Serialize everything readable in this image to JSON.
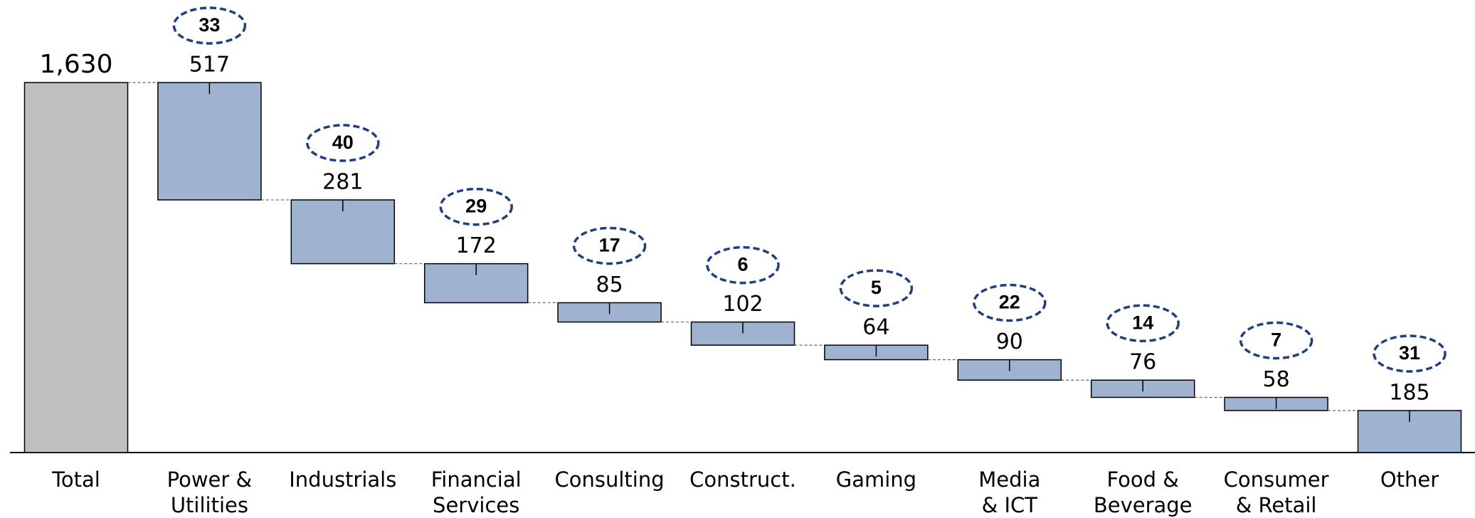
{
  "chart_data": {
    "type": "waterfall",
    "categories": [
      "Total",
      "Power &\nUtilities",
      "Industrials",
      "Financial\nServices",
      "Consulting",
      "Construct.",
      "Gaming",
      "Media\n& ICT",
      "Food &\nBeverage",
      "Consumer\n& Retail",
      "Other"
    ],
    "values": [
      1630,
      517,
      281,
      172,
      85,
      102,
      64,
      90,
      76,
      58,
      185
    ],
    "value_labels": [
      "1,630",
      "517",
      "281",
      "172",
      "85",
      "102",
      "64",
      "90",
      "76",
      "58",
      "185"
    ],
    "badges": [
      null,
      33,
      40,
      29,
      17,
      6,
      5,
      22,
      14,
      7,
      31
    ],
    "total_color": "#bfbfbf",
    "color": "#9fb3d1",
    "badge_color": "#1f3f7f",
    "ylim": [
      0,
      1630
    ]
  }
}
